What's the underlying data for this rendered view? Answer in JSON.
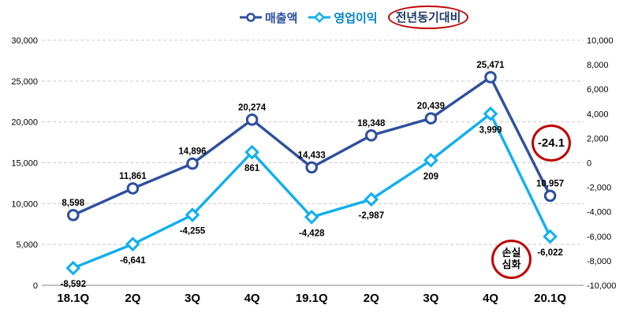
{
  "colors": {
    "revenue_line": "#2E4F9E",
    "profit_line": "#0FB0F0",
    "red": "#C00000",
    "grid": "#C9C9C9",
    "axis_line": "#9C9C9C",
    "text": "#000000",
    "legend_revenue_text": "#2E4F9E",
    "legend_profit_text": "#0083C8",
    "legend_yoy_text": "#203864"
  },
  "legend": {
    "series": [
      {
        "label": "매출액",
        "marker": "circle"
      },
      {
        "label": "영업이익",
        "marker": "diamond"
      }
    ],
    "annotation_label": "전년동기대비"
  },
  "annotations": {
    "yoy_change": "-24.1",
    "loss_line1": "손실",
    "loss_line2": "심화"
  },
  "chart_data": {
    "type": "line",
    "title": "",
    "categories": [
      "18.1Q",
      "2Q",
      "3Q",
      "4Q",
      "19.1Q",
      "2Q",
      "3Q",
      "4Q",
      "20.1Q"
    ],
    "series": [
      {
        "name": "매출액",
        "axis": "left",
        "marker": "circle",
        "label_position": "above",
        "values": [
          8598,
          11861,
          14896,
          20274,
          14433,
          18348,
          20439,
          25471,
          10957
        ],
        "labels": [
          "8,598",
          "11,861",
          "14,896",
          "20,274",
          "14,433",
          "18,348",
          "20,439",
          "25,471",
          "10,957"
        ]
      },
      {
        "name": "영업이익",
        "axis": "right",
        "marker": "diamond",
        "label_position": "below",
        "values": [
          -8592,
          -6641,
          -4255,
          861,
          -4428,
          -2987,
          209,
          3999,
          -6022
        ],
        "labels": [
          "-8,592",
          "-6,641",
          "-4,255",
          "861",
          "-4,428",
          "-2,987",
          "209",
          "3,999",
          "-6,022"
        ]
      }
    ],
    "left_axis": {
      "min": 0,
      "max": 30000,
      "step": 5000,
      "tick_labels": [
        "30,000",
        "25,000",
        "20,000",
        "15,000",
        "10,000",
        "5,000",
        "0"
      ]
    },
    "right_axis": {
      "min": -10000,
      "max": 10000,
      "step": 2000,
      "tick_labels": [
        "10,000",
        "8,000",
        "6,000",
        "4,000",
        "2,000",
        "0",
        "-2,000",
        "-4,000",
        "-6,000",
        "-8,000",
        "-10,000"
      ]
    },
    "grid": "horizontal-dashed",
    "legend_position": "top"
  }
}
